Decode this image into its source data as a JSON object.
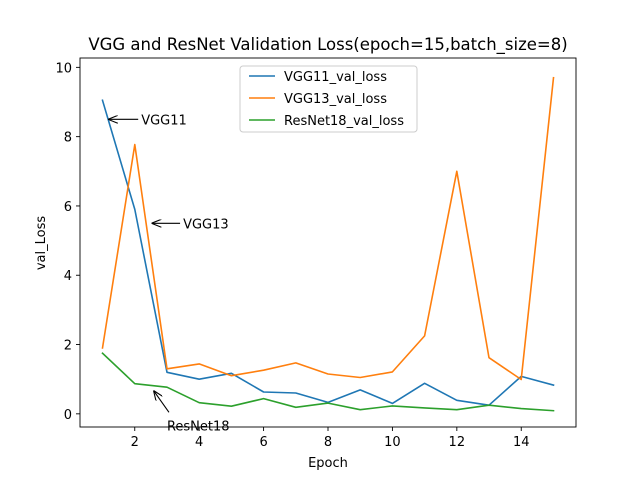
{
  "chart_data": {
    "type": "line",
    "title": "VGG and ResNet Validation Loss(epoch=15,batch_size=8)",
    "xlabel": "Epoch",
    "ylabel": "val_Loss",
    "xlim": [
      0.3,
      15.7
    ],
    "ylim": [
      -0.38,
      10.27
    ],
    "xticks": [
      2,
      4,
      6,
      8,
      10,
      12,
      14
    ],
    "yticks": [
      0,
      2,
      4,
      6,
      8,
      10
    ],
    "grid": false,
    "legend_position": "upper-center",
    "x": [
      1,
      2,
      3,
      4,
      5,
      6,
      7,
      8,
      9,
      10,
      11,
      12,
      13,
      14,
      15
    ],
    "series": [
      {
        "name": "VGG11_val_loss",
        "color": "#1f77b4",
        "values": [
          9.05,
          5.9,
          1.2,
          1.0,
          1.17,
          0.63,
          0.6,
          0.33,
          0.69,
          0.3,
          0.88,
          0.39,
          0.25,
          1.08,
          0.83
        ]
      },
      {
        "name": "VGG13_val_loss",
        "color": "#ff7f0e",
        "values": [
          1.9,
          7.77,
          1.3,
          1.44,
          1.1,
          1.26,
          1.47,
          1.15,
          1.05,
          1.21,
          2.25,
          7.0,
          1.62,
          0.99,
          9.7
        ]
      },
      {
        "name": "ResNet18_val_loss",
        "color": "#2ca02c",
        "values": [
          1.75,
          0.87,
          0.77,
          0.32,
          0.22,
          0.44,
          0.19,
          0.31,
          0.12,
          0.23,
          0.17,
          0.12,
          0.25,
          0.15,
          0.09
        ]
      }
    ],
    "annotations": [
      {
        "label": "VGG11",
        "text_x": 2.2,
        "text_y": 8.5,
        "arrow_x": 1.2,
        "arrow_y": 8.5
      },
      {
        "label": "VGG13",
        "text_x": 3.5,
        "text_y": 5.5,
        "arrow_x": 2.55,
        "arrow_y": 5.5
      },
      {
        "label": "ResNet18",
        "text_x": 3.0,
        "text_y": -0.33,
        "arrow_x": 2.6,
        "arrow_y": 0.65
      }
    ]
  }
}
